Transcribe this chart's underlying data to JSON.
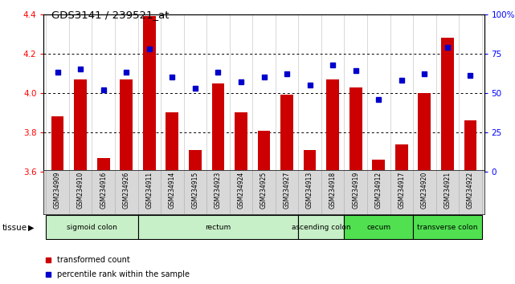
{
  "title": "GDS3141 / 239521_at",
  "samples": [
    "GSM234909",
    "GSM234910",
    "GSM234916",
    "GSM234926",
    "GSM234911",
    "GSM234914",
    "GSM234915",
    "GSM234923",
    "GSM234924",
    "GSM234925",
    "GSM234927",
    "GSM234913",
    "GSM234918",
    "GSM234919",
    "GSM234912",
    "GSM234917",
    "GSM234920",
    "GSM234921",
    "GSM234922"
  ],
  "transformed_count": [
    3.88,
    4.07,
    3.67,
    4.07,
    4.39,
    3.9,
    3.71,
    4.05,
    3.9,
    3.81,
    3.99,
    3.71,
    4.07,
    4.03,
    3.66,
    3.74,
    4.0,
    4.28,
    3.86
  ],
  "percentile_rank": [
    63,
    65,
    52,
    63,
    78,
    60,
    53,
    63,
    57,
    60,
    62,
    55,
    68,
    64,
    46,
    58,
    62,
    79,
    61
  ],
  "ylim_left": [
    3.6,
    4.4
  ],
  "ylim_right": [
    0,
    100
  ],
  "yticks_left": [
    3.6,
    3.8,
    4.0,
    4.2,
    4.4
  ],
  "yticks_right": [
    0,
    25,
    50,
    75,
    100
  ],
  "ytick_labels_right": [
    "0",
    "25",
    "50",
    "75",
    "100%"
  ],
  "bar_color": "#cc0000",
  "dot_color": "#0000cc",
  "tissue_groups": [
    {
      "label": "sigmoid colon",
      "start": 0,
      "end": 3,
      "color": "#c8f0c8"
    },
    {
      "label": "rectum",
      "start": 4,
      "end": 10,
      "color": "#c8f0c8"
    },
    {
      "label": "ascending colon",
      "start": 11,
      "end": 12,
      "color": "#c8f0c8"
    },
    {
      "label": "cecum",
      "start": 13,
      "end": 15,
      "color": "#50e050"
    },
    {
      "label": "transverse colon",
      "start": 16,
      "end": 18,
      "color": "#50e050"
    }
  ],
  "legend_bar_label": "transformed count",
  "legend_dot_label": "percentile rank within the sample",
  "xlabel_tissue": "tissue",
  "sample_bg_color": "#d8d8d8",
  "plot_bg": "#ffffff"
}
